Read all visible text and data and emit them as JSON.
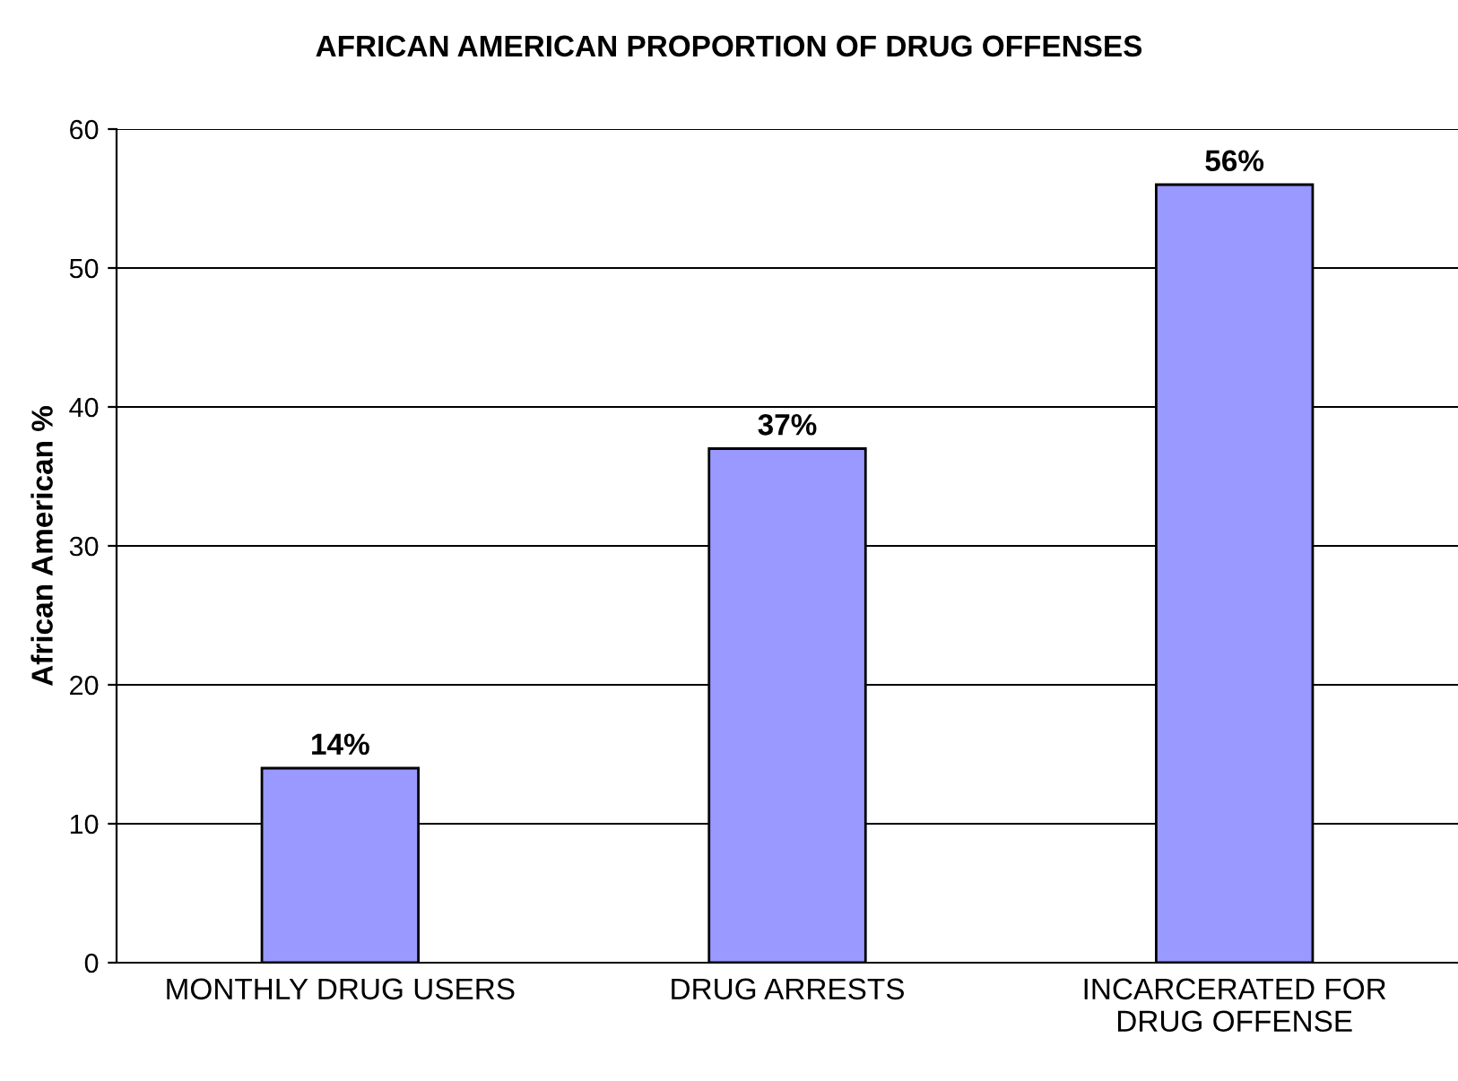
{
  "chart_data": {
    "type": "bar",
    "title": "AFRICAN AMERICAN PROPORTION OF DRUG OFFENSES",
    "ylabel": "African American %",
    "categories": [
      "MONTHLY DRUG USERS",
      "DRUG ARRESTS",
      "INCARCERATED FOR\nDRUG OFFENSE"
    ],
    "values": [
      14,
      37,
      56
    ],
    "value_labels": [
      "14%",
      "37%",
      "56%"
    ],
    "color": "#9999ff",
    "ylim": [
      0,
      60
    ],
    "yticks": [
      0,
      10,
      20,
      30,
      40,
      50,
      60
    ],
    "grid": "y",
    "legend": false
  }
}
